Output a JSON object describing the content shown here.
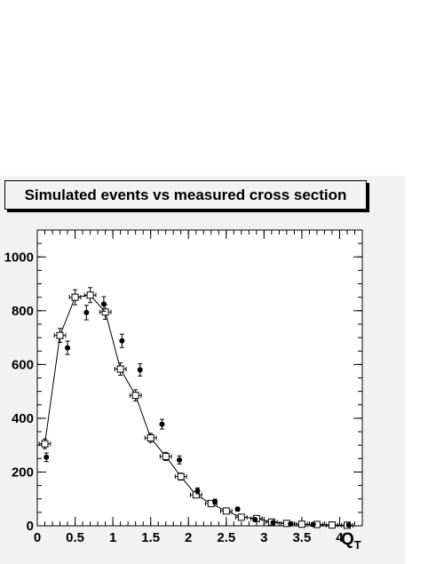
{
  "chart_data": {
    "type": "scatter",
    "title": "Simulated events vs measured cross section",
    "xlabel": "Q",
    "xlabel_sub": "T",
    "ylabel": "",
    "xlim": [
      0,
      4.3
    ],
    "ylim": [
      0,
      1100
    ],
    "x_ticks": [
      0,
      0.5,
      1,
      1.5,
      2,
      2.5,
      3,
      3.5,
      4
    ],
    "x_tick_labels": [
      "0",
      "0.5",
      "1",
      "1.5",
      "2",
      "2.5",
      "3",
      "3.5",
      "4"
    ],
    "y_ticks": [
      0,
      200,
      400,
      600,
      800,
      1000
    ],
    "y_tick_labels": [
      "0",
      "200",
      "400",
      "600",
      "800",
      "1000"
    ],
    "grid": false,
    "series": [
      {
        "marker": "open-square",
        "line": true,
        "color": "#000000",
        "x_half_width": 0.075,
        "points": [
          {
            "x": 0.1,
            "y": 305,
            "err": 18
          },
          {
            "x": 0.3,
            "y": 708,
            "err": 26
          },
          {
            "x": 0.5,
            "y": 850,
            "err": 28
          },
          {
            "x": 0.7,
            "y": 858,
            "err": 28
          },
          {
            "x": 0.9,
            "y": 795,
            "err": 27
          },
          {
            "x": 1.1,
            "y": 583,
            "err": 23
          },
          {
            "x": 1.3,
            "y": 485,
            "err": 21
          },
          {
            "x": 1.5,
            "y": 327,
            "err": 17
          },
          {
            "x": 1.7,
            "y": 258,
            "err": 15
          },
          {
            "x": 1.9,
            "y": 183,
            "err": 13
          },
          {
            "x": 2.1,
            "y": 115,
            "err": 10
          },
          {
            "x": 2.3,
            "y": 83,
            "err": 9
          },
          {
            "x": 2.5,
            "y": 55,
            "err": 7
          },
          {
            "x": 2.7,
            "y": 32,
            "err": 5
          },
          {
            "x": 2.9,
            "y": 27,
            "err": 5
          },
          {
            "x": 3.1,
            "y": 14,
            "err": 3
          },
          {
            "x": 3.3,
            "y": 9,
            "err": 3
          },
          {
            "x": 3.5,
            "y": 6,
            "err": 2
          },
          {
            "x": 3.7,
            "y": 5,
            "err": 2
          },
          {
            "x": 3.9,
            "y": 3,
            "err": 2
          },
          {
            "x": 4.1,
            "y": 2,
            "err": 1
          }
        ]
      },
      {
        "marker": "filled-circle",
        "line": false,
        "color": "#000000",
        "points": [
          {
            "x": 0.12,
            "y": 255,
            "err": 16
          },
          {
            "x": 0.4,
            "y": 662,
            "err": 25
          },
          {
            "x": 0.65,
            "y": 793,
            "err": 27
          },
          {
            "x": 0.88,
            "y": 825,
            "err": 27
          },
          {
            "x": 1.12,
            "y": 688,
            "err": 25
          },
          {
            "x": 1.36,
            "y": 580,
            "err": 23
          },
          {
            "x": 1.65,
            "y": 378,
            "err": 18
          },
          {
            "x": 1.88,
            "y": 245,
            "err": 15
          },
          {
            "x": 2.12,
            "y": 130,
            "err": 11
          },
          {
            "x": 2.35,
            "y": 90,
            "err": 9
          },
          {
            "x": 2.65,
            "y": 62,
            "err": 7
          },
          {
            "x": 2.88,
            "y": 23,
            "err": 4
          },
          {
            "x": 3.12,
            "y": 12,
            "err": 3
          },
          {
            "x": 3.35,
            "y": 7,
            "err": 2
          },
          {
            "x": 3.65,
            "y": 5,
            "err": 2
          },
          {
            "x": 4.12,
            "y": 3,
            "err": 1
          }
        ]
      }
    ]
  }
}
